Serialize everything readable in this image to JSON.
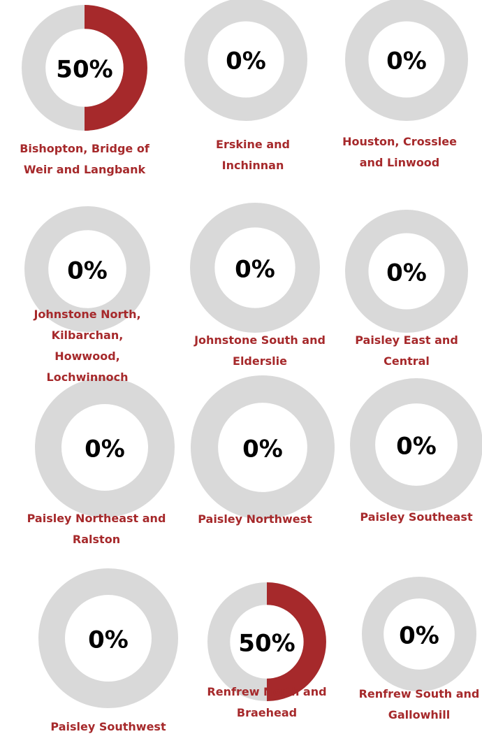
{
  "chart_data": [
    {
      "type": "donut",
      "title": "Bishopton, Bridge of Weir and Langbank",
      "values": [
        50
      ],
      "value_labels": [
        "50%"
      ],
      "color": "#a6292b",
      "track_color": "#d9d9d9"
    },
    {
      "type": "donut",
      "title": "Erskine and Inchinnan",
      "values": [
        0
      ],
      "value_labels": [
        "0%"
      ],
      "color": "#a6292b",
      "track_color": "#d9d9d9"
    },
    {
      "type": "donut",
      "title": "Houston, Crosslee and Linwood",
      "values": [
        0
      ],
      "value_labels": [
        "0%"
      ],
      "color": "#a6292b",
      "track_color": "#d9d9d9"
    },
    {
      "type": "donut",
      "title": "Johnstone North, Kilbarchan, Howwood, Lochwinnoch",
      "values": [
        0
      ],
      "value_labels": [
        "0%"
      ],
      "color": "#a6292b",
      "track_color": "#d9d9d9"
    },
    {
      "type": "donut",
      "title": "Johnstone South and Elderslie",
      "values": [
        0
      ],
      "value_labels": [
        "0%"
      ],
      "color": "#a6292b",
      "track_color": "#d9d9d9"
    },
    {
      "type": "donut",
      "title": "Paisley East and Central",
      "values": [
        0
      ],
      "value_labels": [
        "0%"
      ],
      "color": "#a6292b",
      "track_color": "#d9d9d9"
    },
    {
      "type": "donut",
      "title": "Paisley Northeast and Ralston",
      "values": [
        0
      ],
      "value_labels": [
        "0%"
      ],
      "color": "#a6292b",
      "track_color": "#d9d9d9"
    },
    {
      "type": "donut",
      "title": "Paisley Northwest",
      "values": [
        0
      ],
      "value_labels": [
        "0%"
      ],
      "color": "#a6292b",
      "track_color": "#d9d9d9"
    },
    {
      "type": "donut",
      "title": "Paisley Southeast",
      "values": [
        0
      ],
      "value_labels": [
        "0%"
      ],
      "color": "#a6292b",
      "track_color": "#d9d9d9"
    },
    {
      "type": "donut",
      "title": "Paisley Southwest",
      "values": [
        0
      ],
      "value_labels": [
        "0%"
      ],
      "color": "#a6292b",
      "track_color": "#d9d9d9"
    },
    {
      "type": "donut",
      "title": "Renfrew North and Braehead",
      "values": [
        50
      ],
      "value_labels": [
        "50%"
      ],
      "color": "#a6292b",
      "track_color": "#d9d9d9"
    },
    {
      "type": "donut",
      "title": "Renfrew South and Gallowhill",
      "values": [
        0
      ],
      "value_labels": [
        "0%"
      ],
      "color": "#a6292b",
      "track_color": "#d9d9d9"
    }
  ]
}
